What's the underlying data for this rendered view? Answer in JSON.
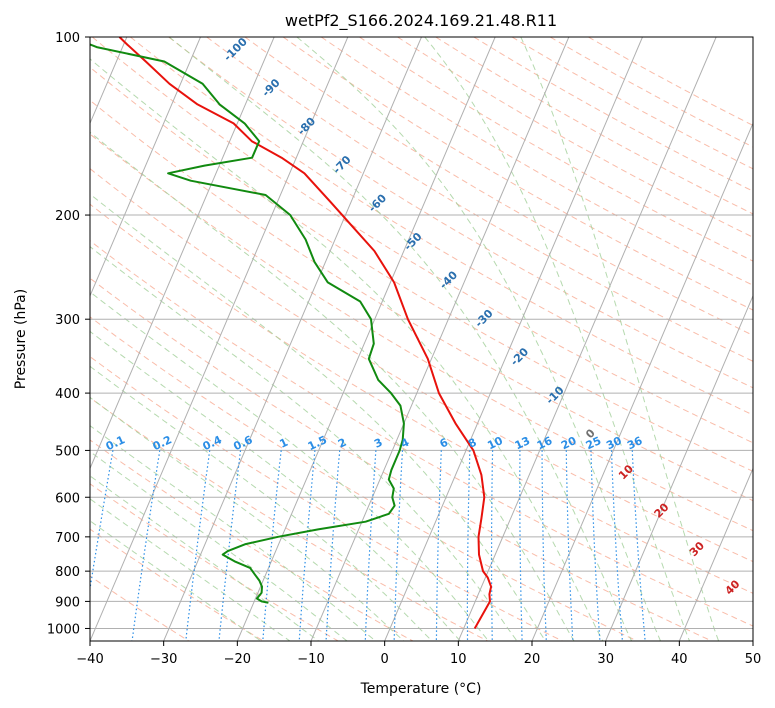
{
  "chart_data": {
    "type": "line",
    "subtype": "skew-T log-P diagram",
    "title": "wetPf2_S166.2024.169.21.48.R11",
    "xlabel": "Temperature (°C)",
    "ylabel": "Pressure (hPa)",
    "xlim": [
      -40,
      50
    ],
    "ylim": [
      1050,
      100
    ],
    "y_scale": "log",
    "x_ticks": [
      -40,
      -30,
      -20,
      -10,
      0,
      10,
      20,
      30,
      40,
      50
    ],
    "y_ticks": [
      100,
      200,
      300,
      400,
      500,
      600,
      700,
      800,
      900,
      1000
    ],
    "grid": true,
    "series": [
      {
        "color": "#e8120c",
        "points": [
          [
            1000,
            11.5
          ],
          [
            900,
            12.0
          ],
          [
            875,
            11.5
          ],
          [
            850,
            11.3
          ],
          [
            820,
            10.3
          ],
          [
            800,
            9.3
          ],
          [
            750,
            7.8
          ],
          [
            700,
            6.7
          ],
          [
            650,
            6.0
          ],
          [
            600,
            5.2
          ],
          [
            550,
            3.5
          ],
          [
            500,
            1.0
          ],
          [
            450,
            -3.0
          ],
          [
            400,
            -7.0
          ],
          [
            350,
            -10.5
          ],
          [
            300,
            -15.5
          ],
          [
            260,
            -19.5
          ],
          [
            230,
            -24.0
          ],
          [
            210,
            -28.2
          ],
          [
            190,
            -32.8
          ],
          [
            170,
            -38.0
          ],
          [
            160,
            -42.0
          ],
          [
            150,
            -47.0
          ],
          [
            140,
            -50.5
          ],
          [
            130,
            -56.5
          ],
          [
            120,
            -61.5
          ],
          [
            110,
            -66.0
          ],
          [
            103,
            -69.5
          ],
          [
            100,
            -71.0
          ]
        ]
      },
      {
        "color": "#118a10",
        "points": [
          [
            905,
            -18.0
          ],
          [
            900,
            -19.0
          ],
          [
            890,
            -19.8
          ],
          [
            870,
            -19.5
          ],
          [
            850,
            -19.8
          ],
          [
            830,
            -20.5
          ],
          [
            810,
            -21.5
          ],
          [
            790,
            -22.5
          ],
          [
            770,
            -25.0
          ],
          [
            750,
            -27.0
          ],
          [
            740,
            -26.5
          ],
          [
            720,
            -24.5
          ],
          [
            700,
            -20.5
          ],
          [
            680,
            -15.5
          ],
          [
            660,
            -9.5
          ],
          [
            640,
            -6.8
          ],
          [
            620,
            -6.5
          ],
          [
            600,
            -7.3
          ],
          [
            580,
            -7.6
          ],
          [
            560,
            -8.8
          ],
          [
            540,
            -9.0
          ],
          [
            520,
            -9.0
          ],
          [
            500,
            -9.0
          ],
          [
            480,
            -9.2
          ],
          [
            450,
            -10.0
          ],
          [
            420,
            -11.5
          ],
          [
            400,
            -13.5
          ],
          [
            380,
            -16.0
          ],
          [
            350,
            -18.5
          ],
          [
            330,
            -18.7
          ],
          [
            300,
            -20.5
          ],
          [
            280,
            -23.0
          ],
          [
            260,
            -28.5
          ],
          [
            240,
            -31.5
          ],
          [
            220,
            -34.0
          ],
          [
            200,
            -37.5
          ],
          [
            185,
            -42.0
          ],
          [
            175,
            -53.0
          ],
          [
            170,
            -56.5
          ],
          [
            165,
            -52.0
          ],
          [
            160,
            -46.0
          ],
          [
            150,
            -46.0
          ],
          [
            140,
            -49.0
          ],
          [
            130,
            -53.5
          ],
          [
            120,
            -57.0
          ],
          [
            110,
            -63.5
          ],
          [
            104,
            -73.5
          ],
          [
            100,
            -77.5
          ]
        ]
      }
    ],
    "isotherm_labels": [
      "-100",
      "-90",
      "-80",
      "-70",
      "-60",
      "-50",
      "-40",
      "-30",
      "-20",
      "-10",
      "0",
      "10",
      "20",
      "30",
      "40"
    ],
    "mixing_ratio_labels": [
      "0.1",
      "0.2",
      "0.4",
      "0.6",
      "1",
      "1.5",
      "2",
      "3",
      "4",
      "6",
      "8",
      "10",
      "13",
      "16",
      "20",
      "25",
      "30",
      "36"
    ]
  },
  "colors": {
    "temperature": "#e8120c",
    "dewpoint": "#118a10",
    "cold_isotherm_label": "#2a6fae",
    "warm_isotherm_label": "#cc2222",
    "zero_isotherm_label": "#707070",
    "mixing_ratio": "#2b8ee6",
    "dry_adiabat": "#f7a68c",
    "moist_adiabat": "#a3cf9a",
    "isotherm_grid": "#b0b0b0"
  }
}
